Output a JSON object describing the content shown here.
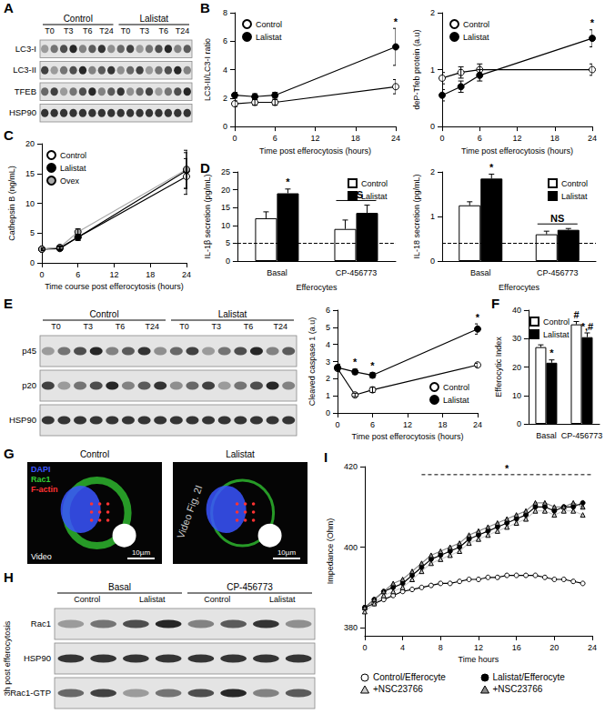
{
  "panel_letters": [
    "A",
    "B",
    "C",
    "D",
    "E",
    "F",
    "G",
    "H",
    "I"
  ],
  "blots": [
    {
      "groups": [
        {
          "label": "Control",
          "lanes": [
            "T0",
            "T3",
            "T6",
            "T24"
          ]
        },
        {
          "label": "Lalistat",
          "lanes": [
            "T0",
            "T3",
            "T6",
            "T24"
          ]
        }
      ],
      "rows": [
        "LC3-I",
        "LC3-II",
        "TFEB",
        "HSP90"
      ]
    },
    {
      "groups": [
        {
          "label": "Control",
          "lanes": [
            "T0",
            "T3",
            "T6",
            "T24"
          ]
        },
        {
          "label": "Lalistat",
          "lanes": [
            "T0",
            "T3",
            "T6",
            "T24"
          ]
        }
      ],
      "rows": [
        "p45",
        "p20",
        "HSP90"
      ]
    },
    {
      "groups": [
        {
          "label": "Basal",
          "lanes": [
            "Control",
            "Lalistat"
          ]
        },
        {
          "label": "CP-456773",
          "lanes": [
            "Control",
            "Lalistat"
          ]
        }
      ],
      "rows": [
        "Rac1",
        "HSP90",
        "Rac1-GTP"
      ],
      "side_label": "3h post efferocytosis"
    }
  ],
  "images": {
    "titles": [
      "Control",
      "Lalistat"
    ],
    "channels": [
      {
        "name": "DAPI",
        "color": "#3a55ff"
      },
      {
        "name": "Rac1",
        "color": "#33cc33"
      },
      {
        "name": "F-actin",
        "color": "#ff3333"
      }
    ],
    "scale_label": "10µm",
    "caption": "Video",
    "overlay": "Video Fig. 2I"
  },
  "chart_data": [
    {
      "type": "line",
      "ylabel": "LC3-II/LC3-I ratio",
      "xlabel": "Time post efferocytosis (hours)",
      "x": [
        0,
        3,
        6,
        24
      ],
      "xlim": [
        0,
        24
      ],
      "xticks": [
        0,
        6,
        12,
        18,
        24
      ],
      "ylim": [
        0,
        8
      ],
      "yticks": [
        0,
        2,
        4,
        6,
        8
      ],
      "legend": "upper left",
      "series": [
        {
          "name": "Control",
          "color": "#ffffff",
          "marker": "circle",
          "values": [
            1.6,
            1.7,
            1.7,
            2.8
          ],
          "errors": [
            0.2,
            0.2,
            0.2,
            0.5
          ]
        },
        {
          "name": "Lalistat",
          "color": "#000000",
          "marker": "circle",
          "values": [
            2.2,
            2.1,
            2.2,
            5.6
          ],
          "errors": [
            0.2,
            0.2,
            0.2,
            1.3
          ]
        }
      ],
      "annotations": [
        {
          "x": 24,
          "text": "*"
        }
      ]
    },
    {
      "type": "line",
      "ylabel": "deP-Tfeb protein (a.u)",
      "xlabel": "Time post efferocytosis (hours)",
      "x": [
        0,
        3,
        6,
        24
      ],
      "xlim": [
        0,
        24
      ],
      "xticks": [
        0,
        6,
        12,
        18,
        24
      ],
      "ylim": [
        0,
        2
      ],
      "yticks": [
        0,
        1,
        2
      ],
      "legend": "upper left",
      "series": [
        {
          "name": "Control",
          "color": "#ffffff",
          "marker": "circle",
          "values": [
            0.85,
            0.95,
            1.0,
            1.0
          ],
          "errors": [
            0.1,
            0.1,
            0.1,
            0.1
          ]
        },
        {
          "name": "Lalistat",
          "color": "#000000",
          "marker": "circle",
          "values": [
            0.55,
            0.7,
            0.9,
            1.55
          ],
          "errors": [
            0.1,
            0.1,
            0.1,
            0.15
          ]
        }
      ],
      "annotations": [
        {
          "x": 24,
          "text": "*"
        }
      ]
    },
    {
      "type": "line",
      "ylabel": "Cathepsin B (ng/mL)",
      "xlabel": "Time course post efferocytosis (hours)",
      "x": [
        0,
        3,
        6,
        24
      ],
      "xlim": [
        0,
        24
      ],
      "xticks": [
        0,
        6,
        12,
        18,
        24
      ],
      "ylim": [
        0,
        20
      ],
      "yticks": [
        0,
        5,
        10,
        15,
        20
      ],
      "legend": "upper left",
      "series": [
        {
          "name": "Control",
          "color": "#ffffff",
          "marker": "circle",
          "values": [
            2.3,
            2.4,
            4.3,
            14.5
          ],
          "errors": [
            0.2,
            0.3,
            0.5,
            3.0
          ]
        },
        {
          "name": "Lalistat",
          "color": "#000000",
          "marker": "circle",
          "values": [
            2.3,
            2.5,
            4.3,
            15.5
          ],
          "errors": [
            0.2,
            0.3,
            0.5,
            3.0
          ]
        },
        {
          "name": "Ovex",
          "color": "#aaaaaa",
          "marker": "circle",
          "values": [
            2.3,
            2.6,
            5.2,
            15.7
          ],
          "errors": [
            0.2,
            0.3,
            0.5,
            3.2
          ]
        }
      ]
    },
    {
      "type": "bar",
      "ylabel": "IL-1β secretion (pg/mL)",
      "xlabel": "Efferocytes",
      "categories": [
        "Basal",
        "CP-456773"
      ],
      "ylim": [
        0,
        25
      ],
      "yticks": [
        0,
        5,
        10,
        15,
        20,
        25
      ],
      "legend": "upper right",
      "hline": 5,
      "series": [
        {
          "name": "Control",
          "color": "#ffffff",
          "values": [
            12,
            9
          ],
          "errors": [
            1.8,
            2.5
          ]
        },
        {
          "name": "Lalistat",
          "color": "#000000",
          "values": [
            19,
            13.5
          ],
          "errors": [
            1.2,
            2.2
          ]
        }
      ],
      "annotations": [
        {
          "category": "Basal",
          "series": "Lalistat",
          "text": "*"
        },
        {
          "category": "CP-456773",
          "text": "NS"
        }
      ]
    },
    {
      "type": "bar",
      "ylabel": "IL-18 secretion (pg/mL)",
      "xlabel": "Efferocytes",
      "categories": [
        "Basal",
        "CP-456773"
      ],
      "ylim": [
        0,
        2
      ],
      "yticks": [
        0,
        1,
        2
      ],
      "legend": "upper right",
      "hline": 0.4,
      "series": [
        {
          "name": "Control",
          "color": "#ffffff",
          "values": [
            1.25,
            0.6
          ],
          "errors": [
            0.08,
            0.07
          ]
        },
        {
          "name": "Lalistat",
          "color": "#000000",
          "values": [
            1.85,
            0.7
          ],
          "errors": [
            0.1,
            0.03
          ]
        }
      ],
      "annotations": [
        {
          "category": "Basal",
          "series": "Lalistat",
          "text": "*"
        },
        {
          "category": "CP-456773",
          "text": "NS"
        }
      ]
    },
    {
      "type": "line",
      "ylabel": "Cleaved caspase 1 (a.u)",
      "xlabel": "Time post efferocytosis (hours)",
      "x": [
        0,
        3,
        6,
        24
      ],
      "xlim": [
        0,
        24
      ],
      "xticks": [
        0,
        6,
        12,
        18,
        24
      ],
      "ylim": [
        0,
        6
      ],
      "yticks": [
        0,
        1,
        2,
        3,
        4,
        5,
        6
      ],
      "legend": "lower right",
      "series": [
        {
          "name": "Control",
          "color": "#ffffff",
          "marker": "circle",
          "values": [
            2.6,
            1.05,
            1.35,
            2.8
          ],
          "errors": [
            0.2,
            0.1,
            0.15,
            0.1
          ]
        },
        {
          "name": "Lalistat",
          "color": "#000000",
          "marker": "circle",
          "values": [
            2.65,
            2.4,
            2.2,
            4.9
          ],
          "errors": [
            0.2,
            0.15,
            0.15,
            0.3
          ]
        }
      ],
      "annotations": [
        {
          "x": 3,
          "text": "*"
        },
        {
          "x": 6,
          "text": "*"
        },
        {
          "x": 24,
          "text": "*"
        }
      ]
    },
    {
      "type": "bar",
      "ylabel": "Efferocytic Index",
      "categories": [
        "Basal",
        "CP-456773"
      ],
      "ylim": [
        0,
        40
      ],
      "yticks": [
        0,
        10,
        20,
        30,
        40
      ],
      "legend": "upper left",
      "series": [
        {
          "name": "Control",
          "color": "#ffffff",
          "values": [
            27,
            35
          ],
          "errors": [
            0.8,
            1.0
          ]
        },
        {
          "name": "Lalistat",
          "color": "#000000",
          "values": [
            21.5,
            30.5
          ],
          "errors": [
            1.0,
            1.5
          ]
        }
      ],
      "annotations": [
        {
          "category": "Basal",
          "series": "Lalistat",
          "text": "*"
        },
        {
          "category": "CP-456773",
          "series": "Control",
          "text": "#"
        },
        {
          "category": "CP-456773",
          "series": "Lalistat",
          "text": "*,#"
        }
      ]
    },
    {
      "type": "line",
      "ylabel": "Impedance (Ohm)",
      "xlabel": "Time hours",
      "x": [
        0,
        1,
        2,
        3,
        4,
        5,
        6,
        7,
        8,
        9,
        10,
        11,
        12,
        13,
        14,
        15,
        16,
        17,
        18,
        19,
        20,
        21,
        22,
        23
      ],
      "xlim": [
        0,
        24
      ],
      "xticks": [
        0,
        4,
        8,
        12,
        16,
        20,
        24
      ],
      "ylim": [
        378,
        420
      ],
      "yticks": [
        380,
        400,
        420
      ],
      "legend": "bottom",
      "series": [
        {
          "name": "Control/Efferocyte",
          "color": "#ffffff",
          "marker": "circle",
          "values": [
            385,
            386,
            387,
            388,
            389,
            389.5,
            390,
            390.5,
            391,
            391,
            391.5,
            392,
            392,
            392.5,
            392.5,
            393,
            393,
            393,
            393,
            392.5,
            392,
            392,
            391.5,
            391
          ]
        },
        {
          "name": "Lalistat/Efferocyte",
          "color": "#000000",
          "marker": "circle",
          "values": [
            385,
            387,
            389,
            390,
            391,
            393,
            395,
            397,
            398,
            399,
            400,
            402,
            403,
            404,
            405,
            406,
            407,
            408,
            410,
            410,
            409,
            410,
            410,
            411
          ]
        },
        {
          "name": "+NSC23766",
          "color": "#cccccc",
          "marker": "triangle",
          "values": [
            384,
            386,
            388,
            389,
            390,
            392,
            394,
            396,
            397,
            398,
            399,
            401,
            402,
            403,
            404,
            405,
            406,
            407,
            409,
            409,
            408,
            409,
            409,
            408
          ]
        },
        {
          "name": "+NSC23766",
          "color": "#888888",
          "marker": "triangle",
          "values": [
            385,
            387,
            389,
            391,
            392,
            394,
            396,
            398,
            399,
            400,
            401,
            403,
            404,
            405,
            406,
            407,
            408,
            409,
            411,
            411,
            410,
            410,
            411,
            410
          ]
        }
      ],
      "annotations": [
        {
          "x_range": [
            6,
            24
          ],
          "y": 418,
          "text": "*"
        }
      ]
    }
  ]
}
